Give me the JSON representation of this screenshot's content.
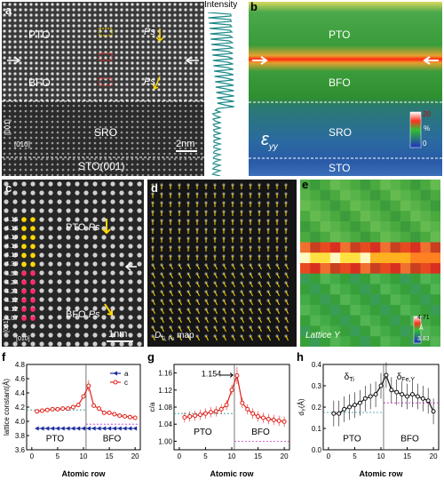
{
  "panel_a": {
    "label": "a",
    "layers": [
      "PTO",
      "BFO",
      "SRO",
      "STO(001)"
    ],
    "polar_labels": [
      "Ps",
      "Ps"
    ],
    "axis_labels": [
      "[001]",
      "[010]"
    ],
    "scale_bar": "2nm",
    "profile_label": "Intensity"
  },
  "panel_b": {
    "label": "b",
    "layers": [
      "PTO",
      "BFO",
      "SRO",
      "STO"
    ],
    "strain_label": "ε",
    "strain_sub": "yy",
    "colorbar_ticks": [
      "20",
      "%",
      "0"
    ]
  },
  "panel_c": {
    "label": "c",
    "lattice_values": [
      "4.16",
      "4.16",
      "4.19",
      "4.16",
      "4.19",
      "4.30",
      "4.50",
      "4.24",
      "4.21",
      "4.12",
      "4.12",
      "4.07"
    ],
    "text_pto": "PTO",
    "text_bfo": "BFO",
    "ps": "Ps",
    "axis_labels": [
      "[001]",
      "[010]"
    ],
    "scale_bar": "1nm"
  },
  "panel_d": {
    "label": "d",
    "map_label": "D",
    "map_label_sub": "Ti, Fe",
    "map_label_suffix": "map"
  },
  "panel_e": {
    "label": "e",
    "map_label": "Lattice Y",
    "colorbar_ticks": [
      "4.71",
      "Å",
      "3.83"
    ]
  },
  "chart_data": [
    {
      "type": "line",
      "panel": "f",
      "xlabel": "Atomic row",
      "ylabel": "lattice constant(Å)",
      "xlim": [
        -1,
        21
      ],
      "ylim": [
        3.6,
        4.8
      ],
      "yticks": [
        "3.6",
        "3.8",
        "4.0",
        "4.2",
        "4.4",
        "4.6",
        "4.8"
      ],
      "xticks": [
        "0",
        "5",
        "10",
        "15",
        "20"
      ],
      "region_labels": [
        "PTO",
        "BFO"
      ],
      "series": [
        {
          "name": "a",
          "color": "#1a2a9a",
          "x": [
            1,
            2,
            3,
            4,
            5,
            6,
            7,
            8,
            9,
            10,
            11,
            12,
            13,
            14,
            15,
            16,
            17,
            18,
            19,
            20
          ],
          "values": [
            3.9,
            3.9,
            3.9,
            3.9,
            3.9,
            3.9,
            3.9,
            3.9,
            3.9,
            3.9,
            3.9,
            3.9,
            3.9,
            3.9,
            3.9,
            3.9,
            3.9,
            3.9,
            3.9,
            3.9
          ]
        },
        {
          "name": "c",
          "color": "#e0201a",
          "x": [
            1,
            2,
            3,
            4,
            5,
            6,
            7,
            8,
            9,
            10,
            11,
            12,
            13,
            14,
            15,
            16,
            17,
            18,
            19,
            20
          ],
          "values": [
            4.14,
            4.15,
            4.16,
            4.17,
            4.17,
            4.18,
            4.18,
            4.2,
            4.23,
            4.35,
            4.5,
            4.22,
            4.18,
            4.12,
            4.12,
            4.1,
            4.08,
            4.07,
            4.06,
            4.05
          ]
        }
      ]
    },
    {
      "type": "line",
      "panel": "g",
      "xlabel": "Atomic row",
      "ylabel": "c/a",
      "xlim": [
        -1,
        21
      ],
      "ylim": [
        0.98,
        1.18
      ],
      "yticks": [
        "1.00",
        "1.04",
        "1.08",
        "1.12",
        "1.16"
      ],
      "xticks": [
        "0",
        "5",
        "10",
        "15",
        "20"
      ],
      "region_labels": [
        "PTO",
        "BFO"
      ],
      "annotation": "1.154",
      "series": [
        {
          "name": "c/a",
          "color": "#e0201a",
          "x": [
            1,
            2,
            3,
            4,
            5,
            6,
            7,
            8,
            9,
            10,
            11,
            12,
            13,
            14,
            15,
            16,
            17,
            18,
            19,
            20
          ],
          "values": [
            1.056,
            1.058,
            1.06,
            1.062,
            1.065,
            1.068,
            1.07,
            1.075,
            1.085,
            1.12,
            1.154,
            1.09,
            1.075,
            1.065,
            1.058,
            1.055,
            1.052,
            1.05,
            1.048,
            1.046
          ]
        }
      ]
    },
    {
      "type": "line",
      "panel": "h",
      "xlabel": "Atomic row",
      "ylabel": "d",
      "ylabel_sub": "Y",
      "ylabel_suffix": "(Å)",
      "xlim": [
        -1,
        21
      ],
      "ylim": [
        0.0,
        0.4
      ],
      "yticks": [
        "0.0",
        "0.1",
        "0.2",
        "0.3",
        "0.4"
      ],
      "xticks": [
        "0",
        "5",
        "10",
        "15",
        "20"
      ],
      "region_labels": [
        "PTO",
        "BFO"
      ],
      "delta_ti": "δ",
      "delta_ti_sub": "Ti",
      "delta_fe": "δ",
      "delta_fe_sub": "Fe,Y",
      "series": [
        {
          "name": "dy",
          "color": "#111111",
          "x": [
            1,
            2,
            3,
            4,
            5,
            6,
            7,
            8,
            9,
            10,
            11,
            12,
            13,
            14,
            15,
            16,
            17,
            18,
            19,
            20
          ],
          "values": [
            0.17,
            0.17,
            0.19,
            0.2,
            0.21,
            0.22,
            0.24,
            0.25,
            0.26,
            0.3,
            0.35,
            0.28,
            0.27,
            0.26,
            0.25,
            0.26,
            0.25,
            0.24,
            0.23,
            0.18
          ]
        }
      ]
    }
  ]
}
